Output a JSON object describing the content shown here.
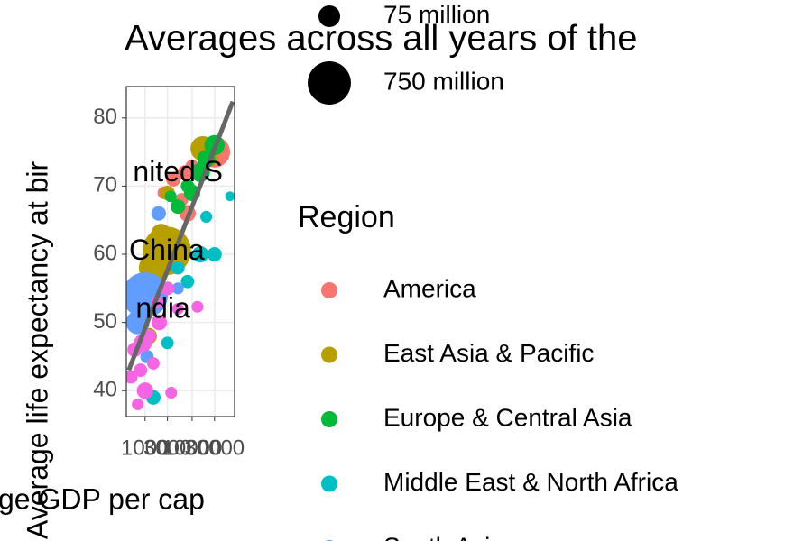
{
  "chart_data": {
    "type": "scatter",
    "title": "Averages across all years of the",
    "x_label": "ge GDP per cap",
    "y_label": "Average life expectancy at bir",
    "log_x": true,
    "grid": true,
    "xlim": [
      400,
      80000
    ],
    "xticks": [
      1000,
      3000,
      10000,
      30000
    ],
    "ylim": [
      36.2,
      84.6
    ],
    "yticks": [
      40,
      50,
      60,
      70,
      80
    ],
    "size_title": null,
    "size_legend": [
      {
        "value": 75,
        "label": "75 million"
      },
      {
        "value": 750,
        "label": "750 million"
      }
    ],
    "legend_title": "Region",
    "series": [
      {
        "name": "America",
        "color": "#F8766D",
        "x": [
          4000,
          6000,
          8000,
          10000,
          20000,
          35000,
          3000,
          5000,
          2500,
          7000,
          30000
        ],
        "values": [
          71,
          68,
          66,
          73,
          74,
          74.5,
          63,
          62,
          69,
          72,
          75
        ],
        "sizes": [
          20,
          15,
          30,
          12,
          25,
          30,
          10,
          8,
          12,
          20,
          250
        ]
      },
      {
        "name": "East Asia & Pacific",
        "color": "#B79F00",
        "x": [
          2900,
          17000,
          1500,
          1200,
          3000,
          2200,
          25000
        ],
        "values": [
          60.5,
          75.5,
          58,
          48,
          69,
          63,
          74
        ],
        "sizes": [
          1100,
          120,
          200,
          30,
          20,
          60,
          20
        ]
      },
      {
        "name": "Europe & Central Asia",
        "color": "#00BA38",
        "x": [
          10000,
          15000,
          30000,
          20000,
          5000,
          8000,
          3500
        ],
        "values": [
          69,
          72,
          76,
          74,
          67,
          70,
          68.5
        ],
        "sizes": [
          30,
          50,
          60,
          40,
          20,
          15,
          10
        ]
      },
      {
        "name": "Middle East & North Africa",
        "color": "#00BFC4",
        "x": [
          64000,
          30000,
          20000,
          8000,
          3000,
          1500,
          15000,
          5000
        ],
        "values": [
          68.5,
          60,
          65.5,
          56,
          47,
          39,
          60,
          58
        ],
        "sizes": [
          5,
          20,
          10,
          15,
          12,
          20,
          30,
          15
        ]
      },
      {
        "name": "South Asia",
        "color": "#619CFF",
        "x": [
          1000,
          1950,
          700,
          900,
          1100,
          5000
        ],
        "values": [
          54,
          66,
          50,
          40,
          45,
          55
        ],
        "sizes": [
          900,
          20,
          100,
          10,
          15,
          10
        ]
      },
      {
        "name": null,
        "color": "#F564E3",
        "x": [
          600,
          800,
          1000,
          1500,
          700,
          2000,
          3000,
          5000,
          1200,
          900,
          3600,
          13000,
          1800,
          500
        ],
        "values": [
          46,
          43,
          40,
          44,
          38,
          50,
          55,
          52,
          48,
          47,
          39.7,
          52.3,
          53,
          42
        ],
        "sizes": [
          20,
          15,
          30,
          12,
          10,
          25,
          15,
          10,
          20,
          40,
          10,
          10,
          12,
          15
        ]
      }
    ],
    "trend": {
      "color": "#666666",
      "x": [
        451,
        73300
      ],
      "values": [
        43.0,
        82.4
      ]
    },
    "annotations": [
      {
        "text": "nited S",
        "x": 5000,
        "y": 71.8
      },
      {
        "text": "China",
        "x": 2900,
        "y": 60.3
      },
      {
        "text": "ndia",
        "x": 2400,
        "y": 51.8
      }
    ]
  }
}
